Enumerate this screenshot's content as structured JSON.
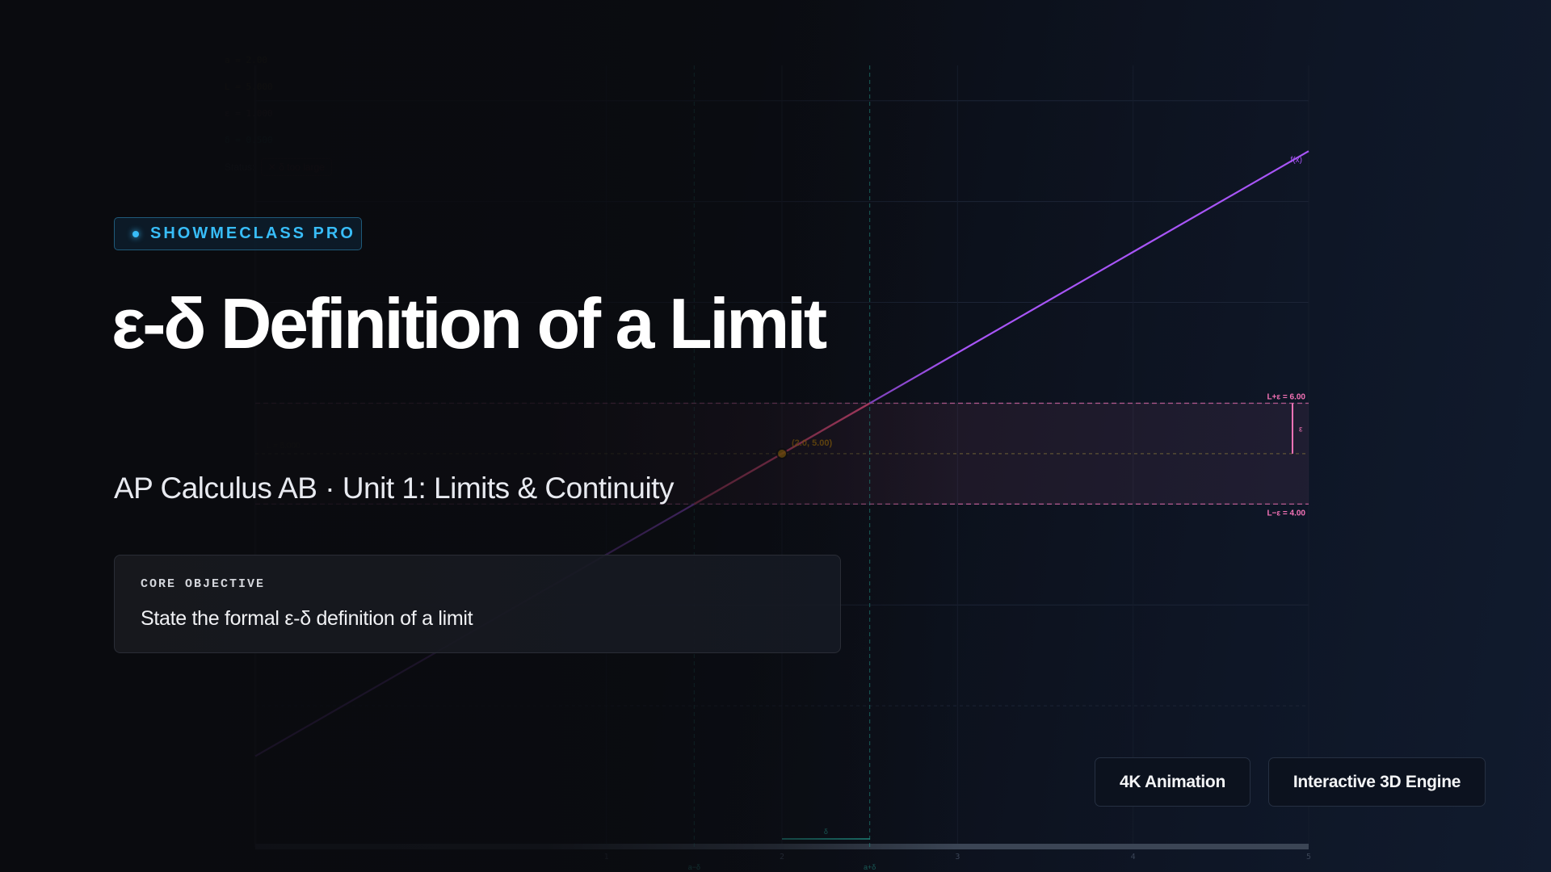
{
  "badge": {
    "label": "SHOWMECLASS PRO"
  },
  "title": "ε-δ Definition of a Limit",
  "subtitle": "AP Calculus AB · Unit 1: Limits & Continuity",
  "objective": {
    "label": "CORE OBJECTIVE",
    "text": "State the formal ε-δ definition of a limit"
  },
  "buttons": {
    "animation": "4K Animation",
    "engine": "Interactive 3D Engine"
  },
  "panel": {
    "a": "a = 2.00",
    "L": "L = 5.000",
    "epsilon": "ε = 1.000",
    "delta": "δ = 0.500",
    "status_label": "Status:",
    "status_value": "✕ δ too large"
  },
  "chart_data": {
    "type": "line",
    "function": "f(x) = 2x + 1",
    "series": [
      {
        "name": "f(x)",
        "x": [
          -1,
          5
        ],
        "y": [
          -1,
          11
        ]
      }
    ],
    "xlim": [
      -1,
      5
    ],
    "ylim": [
      -2.8,
      12.7
    ],
    "x_ticks": [
      "1",
      "2",
      "3",
      "4",
      "5"
    ],
    "y_grid": [
      0,
      2,
      4,
      6,
      8,
      10,
      12
    ],
    "grid": true,
    "a": 2,
    "L": 5,
    "epsilon": 1,
    "delta": 0.5,
    "labels": {
      "upper": "L+ε = 6.00",
      "lower": "L−ε = 4.00",
      "eps": "ε",
      "delta": "δ",
      "a_minus": "a−δ",
      "a_plus": "a+δ",
      "point": "(2.0, 5.00)",
      "L_line": "L = 5.000",
      "curve": "f(x)"
    },
    "colors": {
      "curve": "#a855f7",
      "band": "#f472b6",
      "delta": "#2dd4bf",
      "point": "#ca8a04",
      "segment": "#ef4444"
    }
  }
}
